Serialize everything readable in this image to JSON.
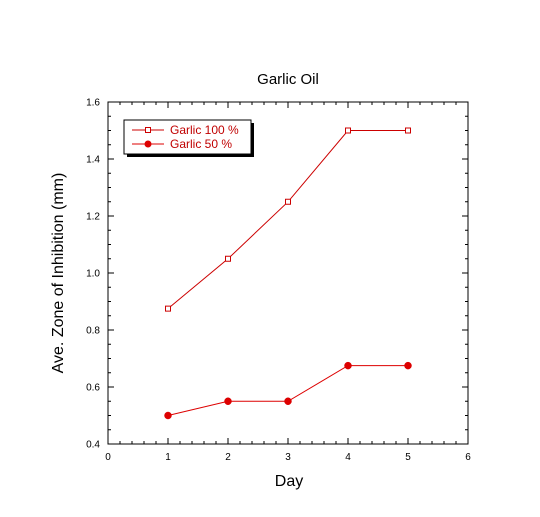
{
  "chart_data": {
    "type": "line",
    "title": "Garlic Oil",
    "xlabel": "Day",
    "ylabel": "Ave. Zone of Inhibition (mm)",
    "xlim": [
      0,
      6
    ],
    "ylim": [
      0.4,
      1.6
    ],
    "x_ticks": [
      "0",
      "1",
      "2",
      "3",
      "4",
      "5",
      "6"
    ],
    "y_ticks": [
      "0.4",
      "0.6",
      "0.8",
      "1.0",
      "1.2",
      "1.4",
      "1.6"
    ],
    "grid": false,
    "legend_position": "top-left",
    "series": [
      {
        "name": "Garlic 100 %",
        "marker": "open-square",
        "color": "#cc0000",
        "x": [
          1,
          2,
          3,
          4,
          5
        ],
        "values": [
          0.875,
          1.05,
          1.25,
          1.5,
          1.5
        ]
      },
      {
        "name": "Garlic 50 %",
        "marker": "filled-circle",
        "color": "#dd0000",
        "x": [
          1,
          2,
          3,
          4,
          5
        ],
        "values": [
          0.5,
          0.55,
          0.55,
          0.675,
          0.675
        ]
      }
    ]
  }
}
